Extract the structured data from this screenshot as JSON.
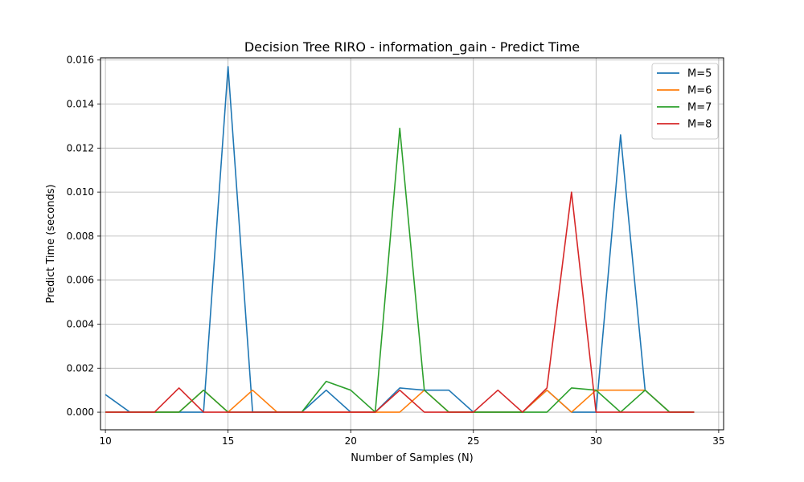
{
  "chart_data": {
    "type": "line",
    "title": "Decision Tree RIRO - information_gain - Predict Time",
    "xlabel": "Number of Samples (N)",
    "ylabel": "Predict Time (seconds)",
    "xlim": [
      9.8,
      35.2
    ],
    "ylim": [
      -0.0008,
      0.0161
    ],
    "x_ticks": [
      10,
      15,
      20,
      25,
      30,
      35
    ],
    "x_tick_labels": [
      "10",
      "15",
      "20",
      "25",
      "30",
      "35"
    ],
    "y_ticks": [
      0.0,
      0.002,
      0.004,
      0.006,
      0.008,
      0.01,
      0.012,
      0.014,
      0.016
    ],
    "y_tick_labels": [
      "0.000",
      "0.002",
      "0.004",
      "0.006",
      "0.008",
      "0.010",
      "0.012",
      "0.014",
      "0.016"
    ],
    "grid": true,
    "legend_position": "top-right",
    "x": [
      10,
      11,
      12,
      13,
      14,
      15,
      16,
      17,
      18,
      19,
      20,
      21,
      22,
      23,
      24,
      25,
      26,
      27,
      28,
      29,
      30,
      31,
      32,
      33,
      34
    ],
    "series": [
      {
        "name": "M=5",
        "color": "#1f77b4",
        "values": [
          0.0008,
          0,
          0,
          0,
          0,
          0.0157,
          0,
          0,
          0,
          0.001,
          0,
          0,
          0.0011,
          0.001,
          0.001,
          0,
          0,
          0,
          0.001,
          0,
          0,
          0.0126,
          0.001,
          0,
          0
        ]
      },
      {
        "name": "M=6",
        "color": "#ff7f0e",
        "values": [
          0,
          0,
          0,
          0,
          0.001,
          0,
          0.001,
          0,
          0,
          0,
          0,
          0,
          0,
          0.001,
          0,
          0,
          0,
          0,
          0.001,
          0,
          0.001,
          0.001,
          0.001,
          0,
          0
        ]
      },
      {
        "name": "M=7",
        "color": "#2ca02c",
        "values": [
          0,
          0,
          0,
          0,
          0.001,
          0,
          0,
          0,
          0,
          0.0014,
          0.001,
          0,
          0.0129,
          0.001,
          0,
          0,
          0,
          0,
          0,
          0.0011,
          0.001,
          0,
          0.001,
          0,
          0
        ]
      },
      {
        "name": "M=8",
        "color": "#d62728",
        "values": [
          0,
          0,
          0,
          0.0011,
          0,
          0,
          0,
          0,
          0,
          0,
          0,
          0,
          0.001,
          0,
          0,
          0,
          0.001,
          0,
          0.0011,
          0.01,
          0,
          0,
          0,
          0,
          0
        ]
      }
    ]
  }
}
